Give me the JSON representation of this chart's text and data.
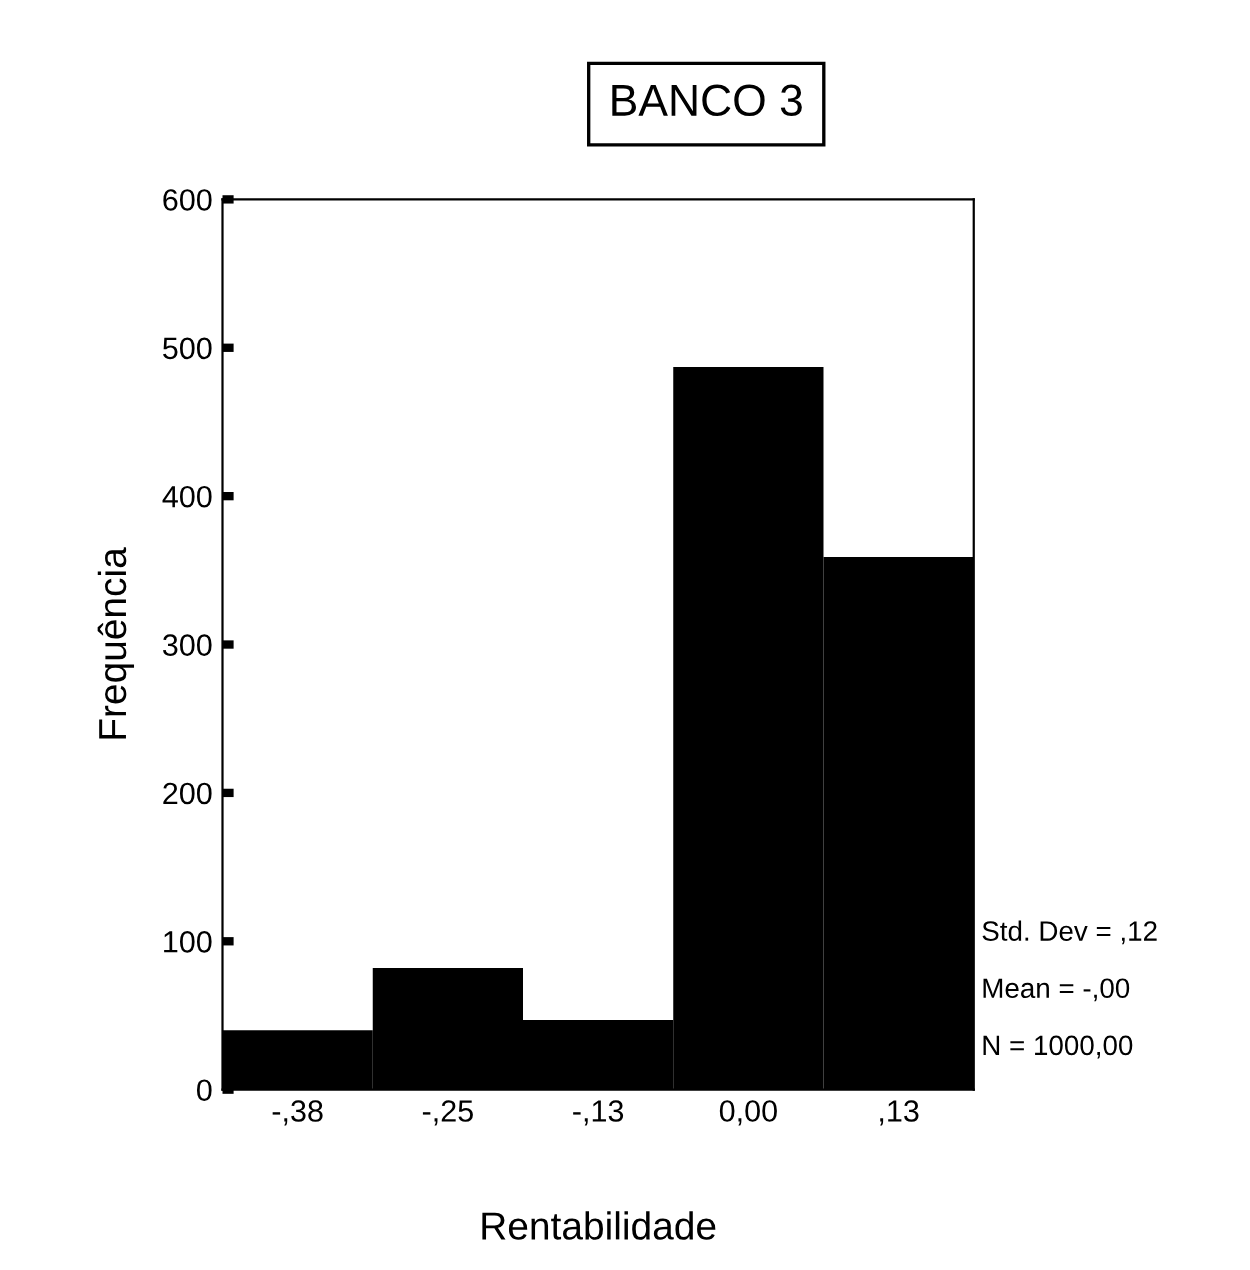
{
  "chart_data": {
    "type": "bar",
    "title": "BANCO 3",
    "xlabel": "Rentabilidade",
    "ylabel": "Frequência",
    "categories": [
      "-,38",
      "-,25",
      "-,13",
      "0,00",
      ",13"
    ],
    "values": [
      40,
      82,
      47,
      487,
      359
    ],
    "color": "#000000",
    "ylim": [
      0,
      600
    ],
    "yticks": [
      0,
      100,
      200,
      300,
      400,
      500,
      600
    ],
    "grid": false,
    "annotations": [
      "Std. Dev = ,12",
      "Mean = -,00",
      "N = 1000,00"
    ]
  }
}
